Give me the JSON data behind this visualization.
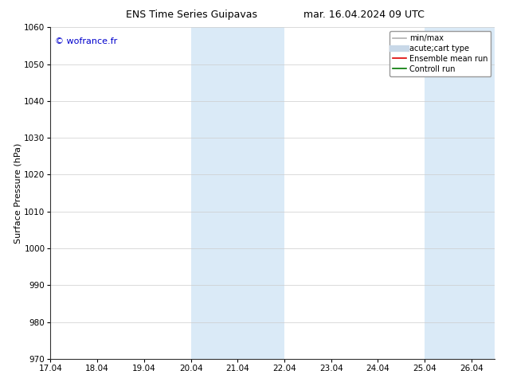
{
  "title_left": "ENS Time Series Guipavas",
  "title_right": "mar. 16.04.2024 09 UTC",
  "ylabel": "Surface Pressure (hPa)",
  "ylim": [
    970,
    1060
  ],
  "yticks": [
    970,
    980,
    990,
    1000,
    1010,
    1020,
    1030,
    1040,
    1050,
    1060
  ],
  "xlim_start": 0,
  "xlim_end": 9.5,
  "xtick_labels": [
    "17.04",
    "18.04",
    "19.04",
    "20.04",
    "21.04",
    "22.04",
    "23.04",
    "24.04",
    "25.04",
    "26.04"
  ],
  "xtick_positions": [
    0,
    1,
    2,
    3,
    4,
    5,
    6,
    7,
    8,
    9
  ],
  "shaded_bands": [
    {
      "x_start": 3.0,
      "x_end": 4.0,
      "color": "#daeaf7"
    },
    {
      "x_start": 4.0,
      "x_end": 5.0,
      "color": "#daeaf7"
    },
    {
      "x_start": 8.0,
      "x_end": 9.0,
      "color": "#daeaf7"
    },
    {
      "x_start": 9.0,
      "x_end": 9.5,
      "color": "#daeaf7"
    }
  ],
  "copyright_text": "© wofrance.fr",
  "copyright_color": "#0000cc",
  "legend_entries": [
    {
      "label": "min/max",
      "color": "#b0b0b0",
      "linestyle": "-",
      "linewidth": 1.2
    },
    {
      "label": "acute;cart type",
      "color": "#c8d8e8",
      "linestyle": "-",
      "linewidth": 6
    },
    {
      "label": "Ensemble mean run",
      "color": "#dd0000",
      "linestyle": "-",
      "linewidth": 1.2
    },
    {
      "label": "Controll run",
      "color": "#007700",
      "linestyle": "-",
      "linewidth": 1.2
    }
  ],
  "background_color": "#ffffff",
  "plot_bg_color": "#ffffff",
  "grid_color": "#cccccc",
  "title_fontsize": 9,
  "axis_label_fontsize": 8,
  "tick_fontsize": 7.5,
  "copyright_fontsize": 8,
  "legend_fontsize": 7
}
